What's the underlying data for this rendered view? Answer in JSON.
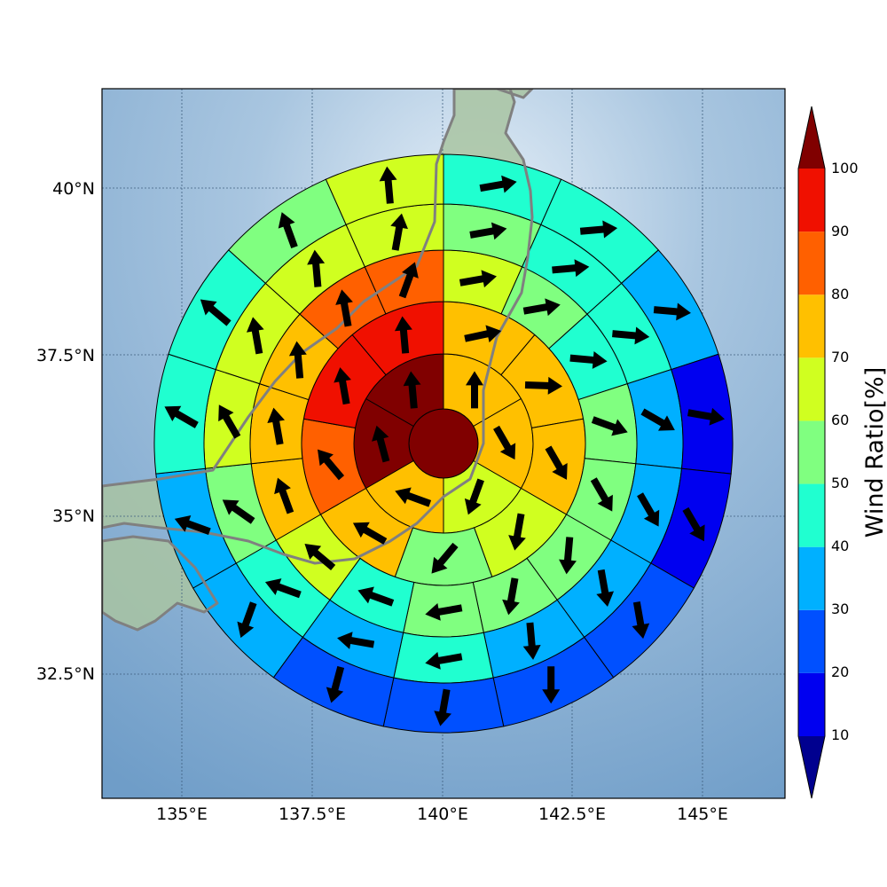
{
  "map": {
    "lat_ticks": [
      "40°N",
      "37.5°N",
      "35°N",
      "32.5°N"
    ],
    "lon_ticks": [
      "135°E",
      "137.5°E",
      "140°E",
      "142.5°E",
      "145°E"
    ],
    "colors": {
      "ocean_light": "#d8e6f2",
      "ocean_dark": "#7aa6cf",
      "land": "#a9c4a2",
      "coastline": "#808080"
    }
  },
  "colorbar": {
    "title": "Wind Ratio[%]",
    "tick_labels": [
      "10",
      "20",
      "30",
      "40",
      "50",
      "60",
      "70",
      "80",
      "90",
      "100"
    ],
    "colors": [
      "#00008f",
      "#0000f0",
      "#0050ff",
      "#00b0ff",
      "#20ffd0",
      "#80ff80",
      "#d0ff20",
      "#ffc000",
      "#ff6000",
      "#f01000",
      "#800000"
    ]
  },
  "chart_data": {
    "type": "polar-sector-map",
    "value_unit": "%",
    "rings": [
      {
        "ring": 0,
        "sectors": [
          {
            "dir": "center",
            "ratio": 105,
            "arrow_deg": 0
          }
        ]
      },
      {
        "ring": 1,
        "sectors": [
          {
            "dir": "N",
            "ratio": 72,
            "arrow_deg": 90
          },
          {
            "dir": "ENE",
            "ratio": 72,
            "arrow_deg": -60
          },
          {
            "dir": "ESE",
            "ratio": 62,
            "arrow_deg": -110
          },
          {
            "dir": "S",
            "ratio": 72,
            "arrow_deg": 160
          },
          {
            "dir": "WSW",
            "ratio": 105,
            "arrow_deg": 105
          },
          {
            "dir": "WNW",
            "ratio": 105,
            "arrow_deg": 95
          }
        ]
      },
      {
        "ring": 2,
        "sectors": [
          {
            "dir": "NNE",
            "ratio": 72,
            "arrow_deg": 12
          },
          {
            "dir": "NE",
            "ratio": 72,
            "arrow_deg": -2
          },
          {
            "dir": "E",
            "ratio": 72,
            "arrow_deg": -60
          },
          {
            "dir": "SE",
            "ratio": 62,
            "arrow_deg": -100
          },
          {
            "dir": "S",
            "ratio": 55,
            "arrow_deg": -130
          },
          {
            "dir": "SW",
            "ratio": 72,
            "arrow_deg": 150
          },
          {
            "dir": "W",
            "ratio": 85,
            "arrow_deg": 130
          },
          {
            "dir": "NW",
            "ratio": 95,
            "arrow_deg": 100
          },
          {
            "dir": "NNW",
            "ratio": 95,
            "arrow_deg": 95
          }
        ]
      },
      {
        "ring": 3,
        "sectors": [
          {
            "dir": "NNE",
            "ratio": 62,
            "arrow_deg": 10
          },
          {
            "dir": "NE",
            "ratio": 55,
            "arrow_deg": 10
          },
          {
            "dir": "ENE",
            "ratio": 45,
            "arrow_deg": -5
          },
          {
            "dir": "E",
            "ratio": 55,
            "arrow_deg": -20
          },
          {
            "dir": "ESE",
            "ratio": 55,
            "arrow_deg": -60
          },
          {
            "dir": "SE",
            "ratio": 55,
            "arrow_deg": -95
          },
          {
            "dir": "SSE",
            "ratio": 55,
            "arrow_deg": -100
          },
          {
            "dir": "S",
            "ratio": 55,
            "arrow_deg": 190
          },
          {
            "dir": "SSW",
            "ratio": 45,
            "arrow_deg": 160
          },
          {
            "dir": "SW",
            "ratio": 62,
            "arrow_deg": 140
          },
          {
            "dir": "WSW",
            "ratio": 72,
            "arrow_deg": 110
          },
          {
            "dir": "W",
            "ratio": 72,
            "arrow_deg": 100
          },
          {
            "dir": "WNW",
            "ratio": 72,
            "arrow_deg": 95
          },
          {
            "dir": "NW",
            "ratio": 85,
            "arrow_deg": 100
          },
          {
            "dir": "NNW",
            "ratio": 85,
            "arrow_deg": 70
          }
        ]
      },
      {
        "ring": 4,
        "sectors": [
          {
            "dir": "NNE",
            "ratio": 55,
            "arrow_deg": 10
          },
          {
            "dir": "NE",
            "ratio": 45,
            "arrow_deg": 5
          },
          {
            "dir": "ENE",
            "ratio": 45,
            "arrow_deg": -5
          },
          {
            "dir": "E",
            "ratio": 35,
            "arrow_deg": -30
          },
          {
            "dir": "ESE",
            "ratio": 35,
            "arrow_deg": -60
          },
          {
            "dir": "SE",
            "ratio": 35,
            "arrow_deg": -80
          },
          {
            "dir": "SSE",
            "ratio": 35,
            "arrow_deg": -85
          },
          {
            "dir": "S",
            "ratio": 45,
            "arrow_deg": 190
          },
          {
            "dir": "SSW",
            "ratio": 35,
            "arrow_deg": 170
          },
          {
            "dir": "SW",
            "ratio": 45,
            "arrow_deg": 160
          },
          {
            "dir": "WSW",
            "ratio": 55,
            "arrow_deg": 145
          },
          {
            "dir": "W",
            "ratio": 62,
            "arrow_deg": 120
          },
          {
            "dir": "WNW",
            "ratio": 62,
            "arrow_deg": 100
          },
          {
            "dir": "NW",
            "ratio": 62,
            "arrow_deg": 95
          },
          {
            "dir": "NNW",
            "ratio": 62,
            "arrow_deg": 80
          }
        ]
      },
      {
        "ring": 5,
        "sectors": [
          {
            "dir": "NNE",
            "ratio": 45,
            "arrow_deg": 10
          },
          {
            "dir": "NE",
            "ratio": 45,
            "arrow_deg": 5
          },
          {
            "dir": "ENE",
            "ratio": 35,
            "arrow_deg": -5
          },
          {
            "dir": "E",
            "ratio": 15,
            "arrow_deg": -10
          },
          {
            "dir": "ESE",
            "ratio": 15,
            "arrow_deg": -60
          },
          {
            "dir": "SE",
            "ratio": 25,
            "arrow_deg": -80
          },
          {
            "dir": "SSE",
            "ratio": 25,
            "arrow_deg": -90
          },
          {
            "dir": "S",
            "ratio": 25,
            "arrow_deg": -100
          },
          {
            "dir": "SSW",
            "ratio": 25,
            "arrow_deg": -105
          },
          {
            "dir": "SW",
            "ratio": 35,
            "arrow_deg": -110
          },
          {
            "dir": "WSW",
            "ratio": 35,
            "arrow_deg": 160
          },
          {
            "dir": "W",
            "ratio": 45,
            "arrow_deg": 150
          },
          {
            "dir": "WNW",
            "ratio": 45,
            "arrow_deg": 140
          },
          {
            "dir": "NW",
            "ratio": 55,
            "arrow_deg": 110
          },
          {
            "dir": "NNW",
            "ratio": 62,
            "arrow_deg": 95
          }
        ]
      }
    ]
  }
}
